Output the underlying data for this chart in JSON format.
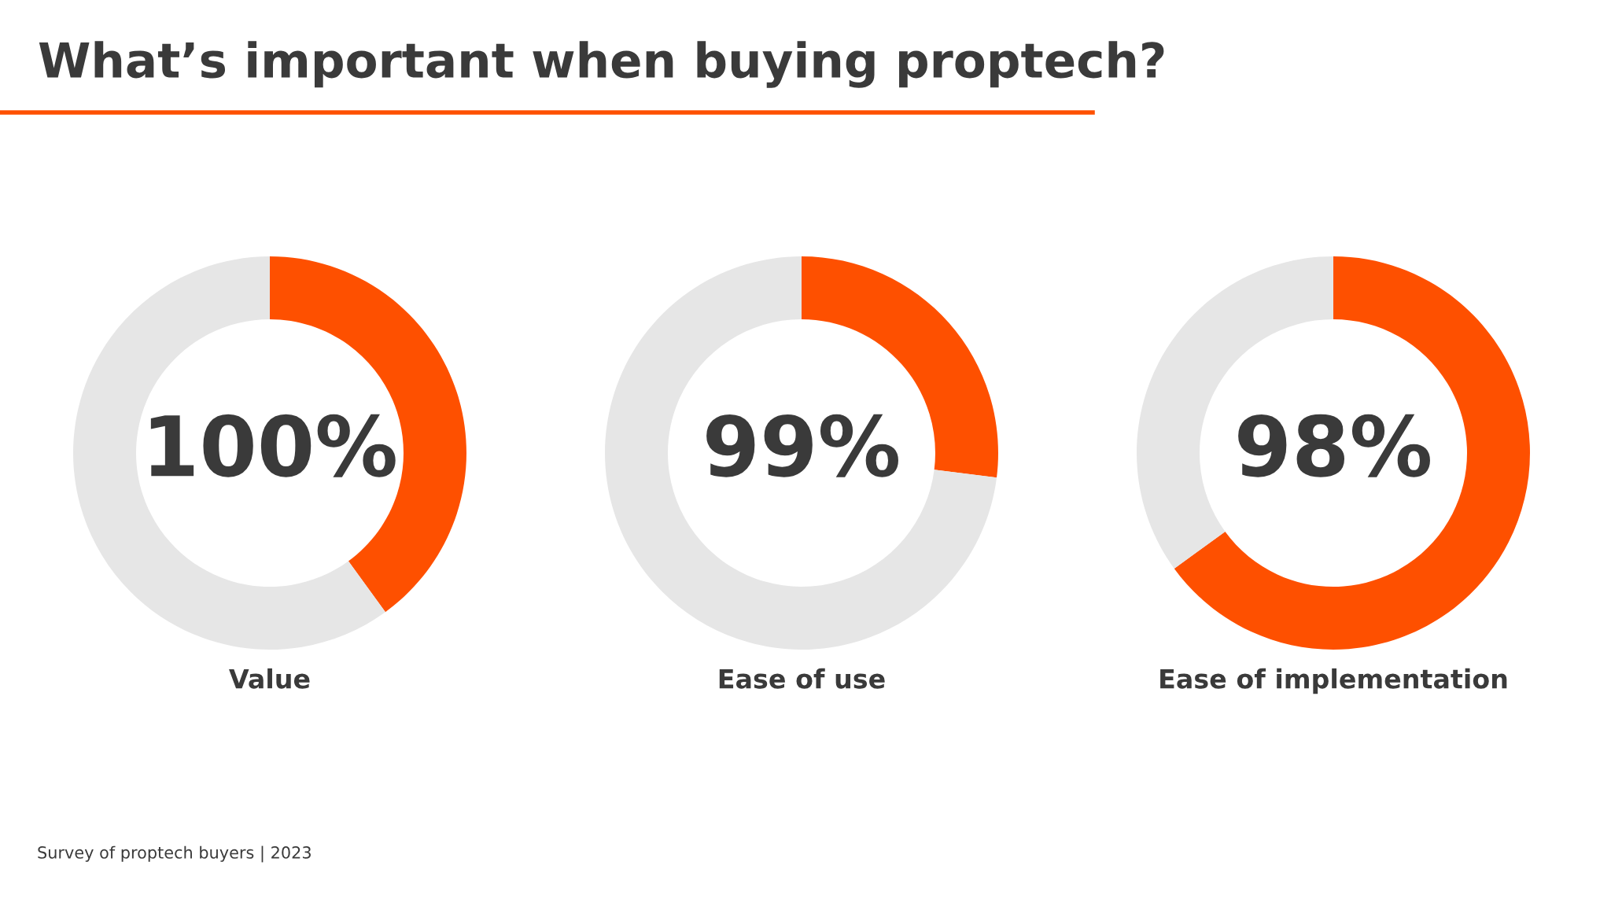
{
  "chart_data": [
    {
      "type": "donut",
      "title": "What’s important when buying proptech?",
      "categories": [
        null,
        null
      ],
      "values": [
        40,
        60
      ],
      "colors": [
        "#fe5000",
        "#e6e6e6"
      ],
      "annotations": [
        "100%"
      ],
      "xlabel": "Value"
    },
    {
      "type": "donut",
      "categories": [
        null,
        null
      ],
      "values": [
        27,
        73
      ],
      "colors": [
        "#fe5000",
        "#e6e6e6"
      ],
      "annotations": [
        "99%"
      ],
      "xlabel": "Ease of use"
    },
    {
      "type": "donut",
      "categories": [
        null,
        null
      ],
      "values": [
        65,
        35
      ],
      "colors": [
        "#fe5000",
        "#e6e6e6"
      ],
      "annotations": [
        "98%",
        "Survey of proptech buyers | 2023"
      ],
      "xlabel": "Ease of implementation"
    }
  ]
}
